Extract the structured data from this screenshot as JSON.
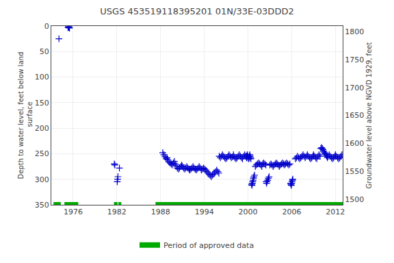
{
  "chart_data": {
    "type": "scatter",
    "title": "USGS 453519118395201 01N/33E-03DDD2",
    "ylabel": "Depth to water level, feet below land\n surface",
    "y2label": "Groundwater level above NGVD 1929, feet",
    "xlim": [
      1973.0,
      2013.0
    ],
    "xticks": [
      1976,
      1982,
      1988,
      1994,
      2000,
      2006,
      2012
    ],
    "ylim": [
      350,
      0
    ],
    "yticks": [
      0,
      50,
      100,
      150,
      200,
      250,
      300,
      350
    ],
    "y2lim": [
      1490,
      1810
    ],
    "y2ticks": [
      1500,
      1550,
      1600,
      1650,
      1700,
      1750,
      1800
    ],
    "grid": true,
    "legend": "bottom",
    "series": [
      {
        "name": "Period of approved data",
        "type": "span",
        "color": "#00aa00",
        "x": [
          [
            1973.3,
            1974.3
          ],
          [
            1974.8,
            1976.7
          ],
          [
            1981.6,
            1982.1
          ],
          [
            1982.2,
            1982.6
          ],
          [
            1987.3,
            2013.0
          ]
        ],
        "values": [
          350,
          350,
          350,
          350,
          350
        ]
      },
      {
        "type": "scatter",
        "marker": "plus",
        "color": "#0000cc",
        "x": [
          1974.05,
          1975.3,
          1975.35,
          1975.38,
          1975.42,
          1975.46,
          1975.5
        ],
        "values": [
          25,
          3,
          2,
          1,
          2,
          3,
          4
        ]
      },
      {
        "type": "scatter",
        "marker": "plus",
        "color": "#0000cc",
        "x": [
          1981.65,
          1981.72,
          1982.05,
          1982.1,
          1982.15,
          1982.35
        ],
        "values": [
          270,
          272,
          305,
          300,
          295,
          278
        ]
      },
      {
        "type": "scatter",
        "marker": "plus",
        "color": "#0000cc",
        "x": [
          1988.3,
          1988.45,
          1988.6,
          1988.75,
          1988.9,
          1989.0,
          1989.15,
          1989.3,
          1989.45,
          1989.6,
          1989.75,
          1989.9,
          1990.0,
          1990.15,
          1990.3,
          1990.45,
          1990.6,
          1990.75,
          1990.9,
          1991.0,
          1991.15,
          1991.3,
          1991.45,
          1991.6,
          1991.75,
          1991.9,
          1992.0,
          1992.15,
          1992.3,
          1992.45,
          1992.6,
          1992.75,
          1992.9,
          1993.0,
          1993.15,
          1993.3,
          1993.45,
          1993.6,
          1993.75,
          1993.9,
          1994.05,
          1994.2,
          1994.35,
          1994.5,
          1994.65,
          1994.8,
          1994.95,
          1995.1,
          1995.25,
          1995.4,
          1995.55,
          1995.7,
          1995.85,
          1996.0,
          1996.05,
          1996.2,
          1996.35,
          1996.5,
          1996.65,
          1996.8,
          1996.95,
          1997.1,
          1997.25,
          1997.4,
          1997.55,
          1997.7,
          1997.85,
          1998.0,
          1998.05,
          1998.2,
          1998.35,
          1998.5,
          1998.65,
          1998.8,
          1998.95,
          1999.1,
          1999.25,
          1999.4,
          1999.55,
          1999.7,
          1999.85,
          1999.75,
          1999.8,
          1999.85,
          1999.9,
          2000.0,
          2000.05,
          2000.1,
          2000.15,
          2000.2,
          2000.25,
          2000.3,
          2000.35,
          2000.4,
          2000.5,
          2000.55,
          2000.6,
          2000.65,
          2000.7,
          2000.75,
          2000.8,
          2000.9,
          2001.0,
          2001.15,
          2001.3,
          2001.45,
          2001.6,
          2001.75,
          2001.9,
          2002.0,
          2002.15,
          2002.3,
          2002.45,
          2002.5,
          2002.55,
          2002.6,
          2002.7,
          2002.8,
          2002.9,
          2003.0,
          2003.15,
          2003.3,
          2003.45,
          2003.6,
          2003.75,
          2003.9,
          2004.0,
          2004.15,
          2004.3,
          2004.45,
          2004.6,
          2004.75,
          2004.9,
          2005.0,
          2005.15,
          2005.3,
          2005.45,
          2005.6,
          2005.75,
          2005.85,
          2005.9,
          2005.95,
          2006.0,
          2006.05,
          2006.1,
          2006.15,
          2006.5,
          2006.65,
          2006.8,
          2006.95,
          2007.1,
          2007.25,
          2007.4,
          2007.55,
          2007.7,
          2007.85,
          2008.0,
          2008.15,
          2008.3,
          2008.45,
          2008.6,
          2008.75,
          2008.9,
          2009.0,
          2009.15,
          2009.3,
          2009.45,
          2009.6,
          2009.75,
          2009.9,
          2010.0,
          2010.1,
          2010.2,
          2010.3,
          2010.4,
          2010.5,
          2010.6,
          2010.7,
          2010.8,
          2010.9,
          2011.0,
          2011.15,
          2011.3,
          2011.45,
          2011.6,
          2011.75,
          2011.9,
          2012.0,
          2012.15,
          2012.3,
          2012.45,
          2012.6,
          2012.75,
          2012.9
        ],
        "values": [
          248,
          252,
          256,
          260,
          258,
          262,
          266,
          268,
          270,
          272,
          268,
          265,
          270,
          274,
          278,
          280,
          278,
          275,
          272,
          275,
          278,
          280,
          278,
          275,
          278,
          280,
          282,
          280,
          278,
          275,
          278,
          280,
          282,
          280,
          278,
          275,
          278,
          282,
          280,
          278,
          280,
          282,
          285,
          288,
          290,
          292,
          295,
          292,
          290,
          288,
          285,
          282,
          285,
          288,
          255,
          258,
          255,
          252,
          255,
          258,
          260,
          258,
          255,
          252,
          255,
          258,
          256,
          252,
          255,
          258,
          260,
          258,
          255,
          252,
          255,
          258,
          260,
          255,
          252,
          255,
          258,
          255,
          258,
          255,
          252,
          255,
          258,
          260,
          258,
          255,
          252,
          255,
          258,
          260,
          310,
          312,
          308,
          305,
          302,
          298,
          295,
          292,
          275,
          272,
          270,
          268,
          270,
          272,
          275,
          270,
          268,
          270,
          272,
          305,
          308,
          305,
          302,
          298,
          295,
          272,
          270,
          272,
          275,
          272,
          270,
          268,
          270,
          272,
          275,
          272,
          270,
          268,
          270,
          272,
          270,
          268,
          270,
          272,
          270,
          308,
          310,
          312,
          308,
          305,
          302,
          300,
          260,
          258,
          255,
          258,
          260,
          258,
          255,
          252,
          255,
          258,
          255,
          252,
          255,
          258,
          260,
          258,
          255,
          252,
          255,
          258,
          260,
          255,
          252,
          255,
          240,
          238,
          240,
          242,
          245,
          248,
          250,
          252,
          255,
          258,
          255,
          252,
          255,
          258,
          260,
          258,
          255,
          252,
          255,
          258,
          260,
          258,
          255,
          252
        ]
      }
    ]
  }
}
